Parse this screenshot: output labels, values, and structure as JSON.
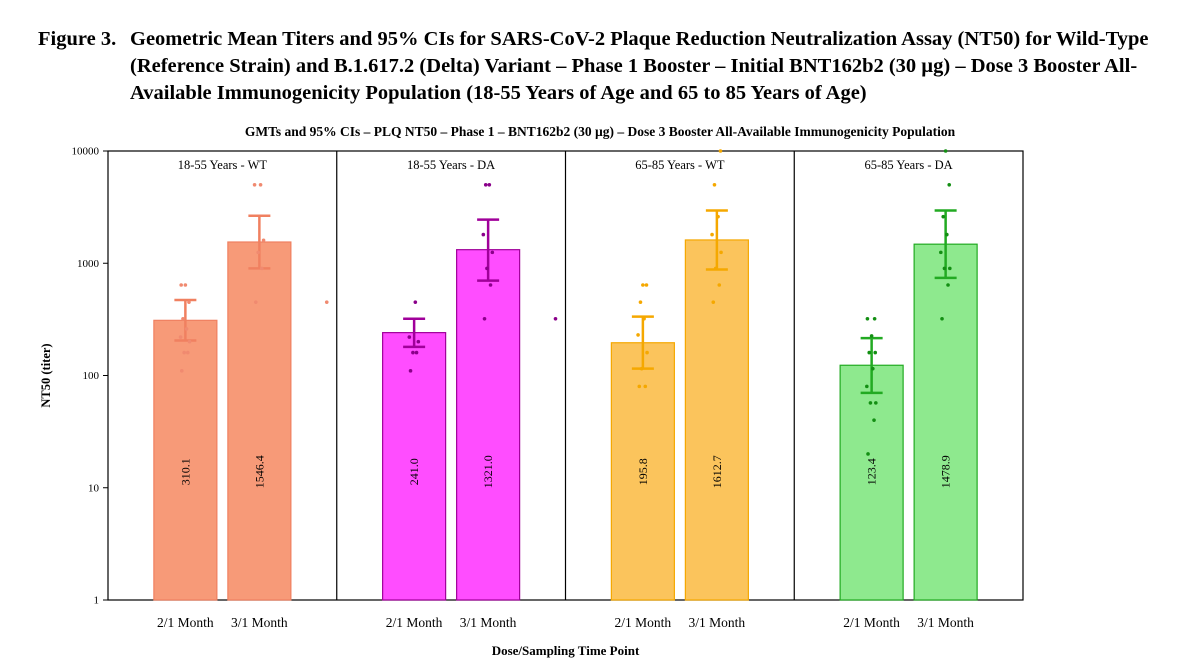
{
  "figure": {
    "label": "Figure 3.",
    "caption": "Geometric Mean Titers and 95% CIs for SARS-CoV-2 Plaque Reduction Neutralization Assay (NT50) for Wild-Type (Reference Strain) and B.1.617.2 (Delta) Variant – Phase 1 Booster – Initial BNT162b2 (30 µg)  – Dose 3 Booster All-Available Immunogenicity Population (18-55 Years of Age and 65 to 85 Years of Age)"
  },
  "chart_data": {
    "type": "bar",
    "title": "GMTs and 95% CIs – PLQ NT50 – Phase 1 – BNT162b2 (30 µg) – Dose 3 Booster All-Available Immunogenicity Population",
    "xlabel": "Dose/Sampling Time Point",
    "ylabel": "NT50 (titer)",
    "yscale": "log",
    "ylim": [
      1,
      10000
    ],
    "yticks": [
      1,
      10,
      100,
      1000,
      10000
    ],
    "grid": false,
    "categories": [
      "2/1 Month",
      "3/1 Month"
    ],
    "panels": [
      {
        "name": "18-55 Years - WT",
        "color": "#f79a78",
        "edge": "#f08060",
        "dot": "#f08a70",
        "values": [
          310.1,
          1546.4
        ],
        "value_labels": [
          "310.1",
          "1546.4"
        ],
        "ci_low": [
          205,
          900
        ],
        "ci_high": [
          470,
          2650
        ],
        "points": [
          [
            110,
            160,
            160,
            200,
            220,
            260,
            320,
            450,
            640,
            640
          ],
          [
            450,
            900,
            1250,
            1600,
            5000,
            5000
          ]
        ],
        "outlier": 450
      },
      {
        "name": "18-55 Years - DA",
        "color": "#ff4dff",
        "edge": "#a0009a",
        "dot": "#8a008a",
        "values": [
          241.0,
          1321.0
        ],
        "value_labels": [
          "241.0",
          "1321.0"
        ],
        "ci_low": [
          180,
          700
        ],
        "ci_high": [
          320,
          2450
        ],
        "points": [
          [
            110,
            160,
            160,
            200,
            220,
            450
          ],
          [
            320,
            640,
            900,
            1250,
            1800,
            5000,
            5000
          ]
        ],
        "outlier": 320
      },
      {
        "name": "65-85 Years - WT",
        "color": "#fbc45c",
        "edge": "#f5a800",
        "dot": "#f5a800",
        "values": [
          195.8,
          1612.7
        ],
        "value_labels": [
          "195.8",
          "1612.7"
        ],
        "ci_low": [
          115,
          880
        ],
        "ci_high": [
          335,
          2950
        ],
        "points": [
          [
            80,
            80,
            115,
            160,
            230,
            320,
            450,
            640,
            640
          ],
          [
            450,
            640,
            900,
            1250,
            1800,
            2600,
            5000,
            10000
          ]
        ],
        "outlier": null
      },
      {
        "name": "65-85 Years - DA",
        "color": "#8ee98e",
        "edge": "#22aa22",
        "dot": "#138f13",
        "values": [
          123.4,
          1478.9
        ],
        "value_labels": [
          "123.4",
          "1478.9"
        ],
        "ci_low": [
          70,
          740
        ],
        "ci_high": [
          215,
          2950
        ],
        "points": [
          [
            20,
            40,
            57,
            57,
            80,
            115,
            160,
            160,
            225,
            320,
            320
          ],
          [
            320,
            640,
            900,
            900,
            1250,
            1800,
            2600,
            5000,
            10000
          ]
        ],
        "outlier": null
      }
    ]
  }
}
